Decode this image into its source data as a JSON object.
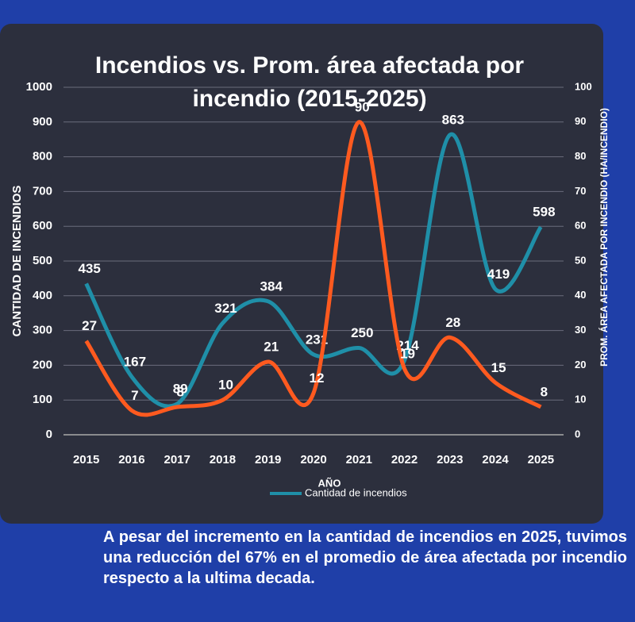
{
  "chart_data": {
    "type": "line",
    "title": "Incendios vs. Prom. área afectada por incendio (2015-2025)",
    "x_label": "AÑO",
    "y_label": "CANTIDAD DE INCENDIOS",
    "y2_label": "PROM. ÁREA AFECTADA POR INCENDIO (HA/INCENDIO)",
    "categories": [
      "2015",
      "2016",
      "2017",
      "2018",
      "2019",
      "2020",
      "2021",
      "2022",
      "2023",
      "2024",
      "2025"
    ],
    "series": [
      {
        "name": "Cantidad de incendios",
        "color": "#1f8fa8",
        "values": [
          435,
          167,
          89,
          321,
          384,
          231,
          250,
          214,
          863,
          419,
          598
        ]
      },
      {
        "color": "#ff5a1f",
        "axis": "y2",
        "values": [
          27,
          7,
          8,
          10,
          21,
          12,
          90,
          19,
          28,
          15,
          8
        ]
      }
    ],
    "ylim": [
      0,
      1000
    ],
    "yticks": [
      0,
      100,
      200,
      300,
      400,
      500,
      600,
      700,
      800,
      900,
      1000
    ],
    "y2lim": [
      0,
      100
    ],
    "y2ticks": [
      0,
      10,
      20,
      30,
      40,
      50,
      60,
      70,
      80,
      90,
      100
    ],
    "grid": true,
    "caption": "A pesar del incremento en la cantidad de incendios en 2025, tuvimos una reducción del 67% en el promedio de área afectada por incendio respecto a la ultima decada."
  }
}
